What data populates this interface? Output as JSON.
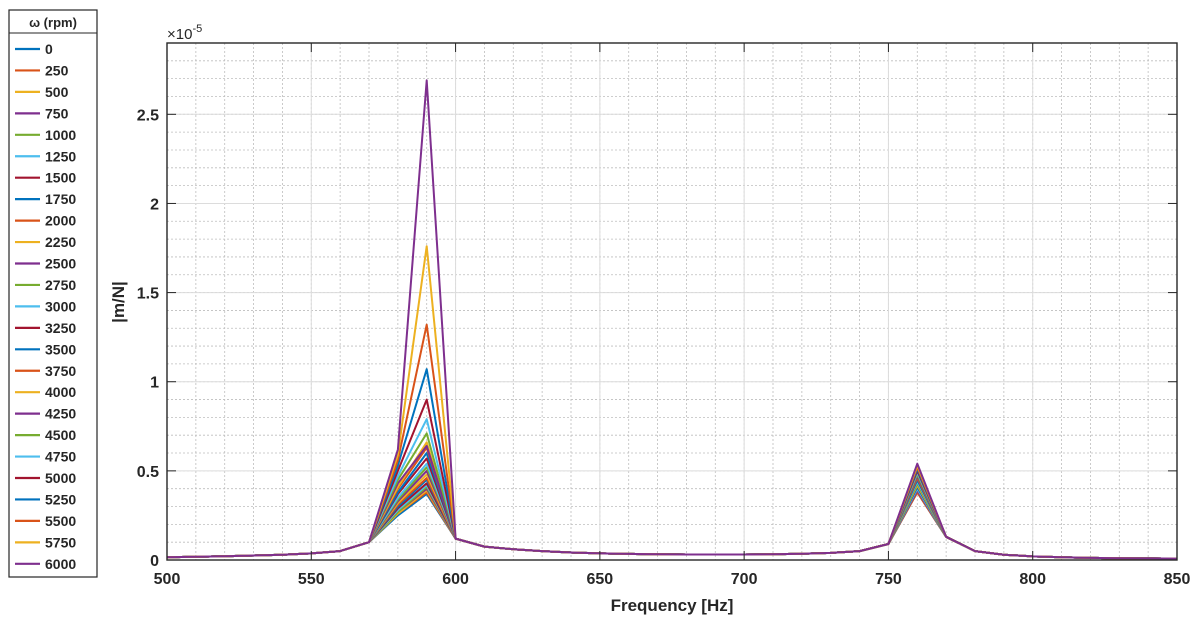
{
  "chart_data": {
    "type": "line",
    "xlabel": "Frequency [Hz]",
    "ylabel": "|m/N|",
    "y_exponent_label": "×10",
    "y_exponent_power": "-5",
    "xlim": [
      500,
      850
    ],
    "ylim": [
      0,
      2.9
    ],
    "y_scale_factor": 1e-05,
    "x_ticks": [
      500,
      550,
      600,
      650,
      700,
      750,
      800,
      850
    ],
    "x_tick_labels": [
      "500",
      "550",
      "600",
      "650",
      "700",
      "750",
      "800",
      "850"
    ],
    "y_ticks": [
      0,
      0.5,
      1,
      1.5,
      2,
      2.5
    ],
    "y_tick_labels": [
      "0",
      "0.5",
      "1",
      "1.5",
      "2",
      "2.5"
    ],
    "x_minor_step": 10,
    "y_minor_step": 0.1,
    "grid": true,
    "minor_grid": true,
    "legend_position": "outside-left",
    "legend": {
      "title": "ω (rpm)",
      "entries": [
        {
          "label": "0",
          "color": "#0072BD"
        },
        {
          "label": "250",
          "color": "#D95319"
        },
        {
          "label": "500",
          "color": "#EDB120"
        },
        {
          "label": "750",
          "color": "#7E2F8E"
        },
        {
          "label": "1000",
          "color": "#77AC30"
        },
        {
          "label": "1250",
          "color": "#4DBEEE"
        },
        {
          "label": "1500",
          "color": "#A2142F"
        },
        {
          "label": "1750",
          "color": "#0072BD"
        },
        {
          "label": "2000",
          "color": "#D95319"
        },
        {
          "label": "2250",
          "color": "#EDB120"
        },
        {
          "label": "2500",
          "color": "#7E2F8E"
        },
        {
          "label": "2750",
          "color": "#77AC30"
        },
        {
          "label": "3000",
          "color": "#4DBEEE"
        },
        {
          "label": "3250",
          "color": "#A2142F"
        },
        {
          "label": "3500",
          "color": "#0072BD"
        },
        {
          "label": "3750",
          "color": "#D95319"
        },
        {
          "label": "4000",
          "color": "#EDB120"
        },
        {
          "label": "4250",
          "color": "#7E2F8E"
        },
        {
          "label": "4500",
          "color": "#77AC30"
        },
        {
          "label": "4750",
          "color": "#4DBEEE"
        },
        {
          "label": "5000",
          "color": "#A2142F"
        },
        {
          "label": "5250",
          "color": "#0072BD"
        },
        {
          "label": "5500",
          "color": "#D95319"
        },
        {
          "label": "5750",
          "color": "#EDB120"
        },
        {
          "label": "6000",
          "color": "#7E2F8E"
        }
      ]
    },
    "x": [
      500,
      510,
      520,
      530,
      540,
      550,
      560,
      570,
      580,
      590,
      600,
      610,
      620,
      630,
      640,
      650,
      660,
      670,
      680,
      690,
      700,
      710,
      720,
      730,
      740,
      750,
      760,
      770,
      780,
      790,
      800,
      810,
      820,
      830,
      840,
      850
    ],
    "series": [
      {
        "name": "0",
        "peak1": 0.37,
        "shoulder": 0.25,
        "peak2": 0.38
      },
      {
        "name": "250",
        "peak1": 0.38,
        "shoulder": 0.26,
        "peak2": 0.38
      },
      {
        "name": "500",
        "peak1": 0.39,
        "shoulder": 0.26,
        "peak2": 0.39
      },
      {
        "name": "750",
        "peak1": 0.4,
        "shoulder": 0.27,
        "peak2": 0.39
      },
      {
        "name": "1000",
        "peak1": 0.41,
        "shoulder": 0.27,
        "peak2": 0.4
      },
      {
        "name": "1250",
        "peak1": 0.42,
        "shoulder": 0.28,
        "peak2": 0.4
      },
      {
        "name": "1500",
        "peak1": 0.43,
        "shoulder": 0.29,
        "peak2": 0.41
      },
      {
        "name": "1750",
        "peak1": 0.45,
        "shoulder": 0.3,
        "peak2": 0.41
      },
      {
        "name": "2000",
        "peak1": 0.46,
        "shoulder": 0.31,
        "peak2": 0.42
      },
      {
        "name": "2250",
        "peak1": 0.48,
        "shoulder": 0.32,
        "peak2": 0.42
      },
      {
        "name": "2500",
        "peak1": 0.5,
        "shoulder": 0.33,
        "peak2": 0.43
      },
      {
        "name": "2750",
        "peak1": 0.52,
        "shoulder": 0.34,
        "peak2": 0.43
      },
      {
        "name": "3000",
        "peak1": 0.54,
        "shoulder": 0.35,
        "peak2": 0.44
      },
      {
        "name": "3250",
        "peak1": 0.57,
        "shoulder": 0.37,
        "peak2": 0.45
      },
      {
        "name": "3500",
        "peak1": 0.6,
        "shoulder": 0.38,
        "peak2": 0.45
      },
      {
        "name": "3750",
        "peak1": 0.63,
        "shoulder": 0.4,
        "peak2": 0.46
      },
      {
        "name": "4000",
        "peak1": 0.66,
        "shoulder": 0.41,
        "peak2": 0.47
      },
      {
        "name": "4250",
        "peak1": 0.64,
        "shoulder": 0.43,
        "peak2": 0.47
      },
      {
        "name": "4500",
        "peak1": 0.71,
        "shoulder": 0.45,
        "peak2": 0.48
      },
      {
        "name": "4750",
        "peak1": 0.79,
        "shoulder": 0.47,
        "peak2": 0.49
      },
      {
        "name": "5000",
        "peak1": 0.9,
        "shoulder": 0.5,
        "peak2": 0.5
      },
      {
        "name": "5250",
        "peak1": 1.07,
        "shoulder": 0.53,
        "peak2": 0.51
      },
      {
        "name": "5500",
        "peak1": 1.32,
        "shoulder": 0.56,
        "peak2": 0.52
      },
      {
        "name": "5750",
        "peak1": 1.76,
        "shoulder": 0.59,
        "peak2": 0.53
      },
      {
        "name": "6000",
        "peak1": 2.69,
        "shoulder": 0.62,
        "peak2": 0.54
      }
    ],
    "baseline": [
      0.015,
      0.018,
      0.021,
      0.025,
      0.03,
      0.037,
      0.05,
      0.1,
      null,
      null,
      0.12,
      0.075,
      0.06,
      0.05,
      0.042,
      0.037,
      0.034,
      0.032,
      0.031,
      0.031,
      0.031,
      0.032,
      0.035,
      0.04,
      0.05,
      0.09,
      null,
      0.13,
      0.05,
      0.03,
      0.02,
      0.015,
      0.012,
      0.01,
      0.009,
      0.008
    ]
  }
}
